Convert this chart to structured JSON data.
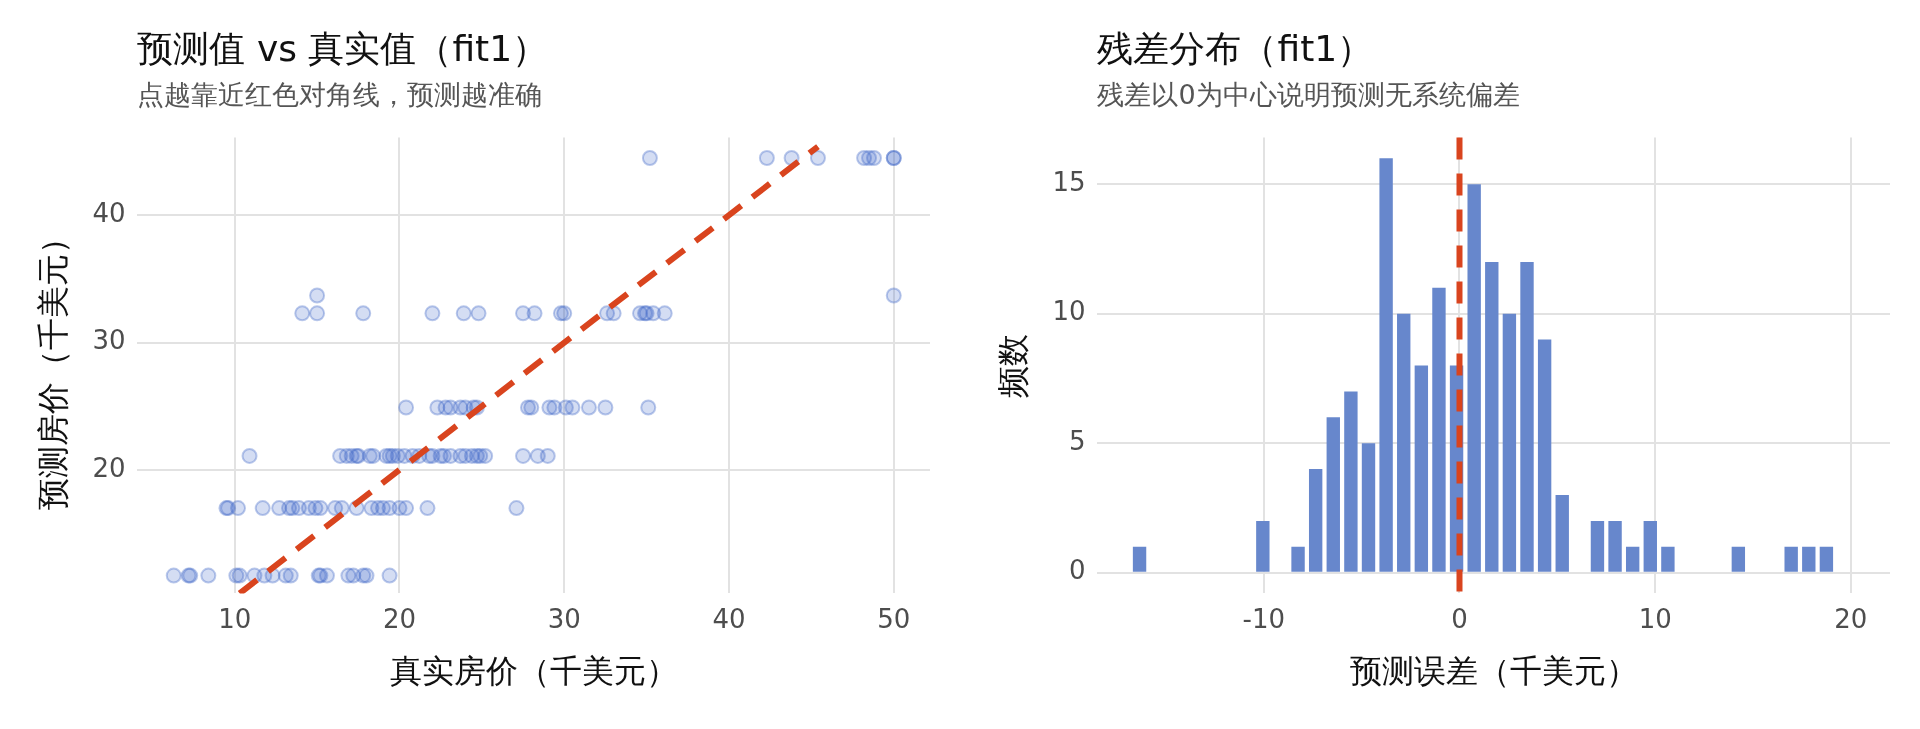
{
  "chart_data": [
    {
      "type": "scatter",
      "title": "预测值 vs 真实值（fit1）",
      "subtitle": "点越靠近红色对角线，预测越准确",
      "xlabel": "真实房价（千美元）",
      "ylabel": "预测房价（千美元）",
      "xlim": [
        4.1,
        52.2
      ],
      "ylim": [
        10.3,
        46.1
      ],
      "xticks": [
        10,
        20,
        30,
        40,
        50
      ],
      "yticks": [
        20,
        30,
        40
      ],
      "grid": true,
      "series": [
        {
          "color": "#3d63c7",
          "marker": "circle",
          "x": [
            35.2,
            42.3,
            43.8,
            45.4,
            48.2,
            48.5,
            48.8,
            50,
            50,
            15.0,
            50.0,
            14.1,
            15.0,
            17.8,
            22.0,
            23.9,
            24.8,
            27.5,
            28.2,
            29.8,
            30.0,
            32.6,
            33.0,
            34.6,
            34.9,
            35.0,
            35.4,
            36.1,
            20.4,
            22.3,
            22.8,
            23.1,
            23.7,
            24.0,
            24.5,
            24.7,
            27.8,
            28.0,
            29.1,
            29.4,
            30.1,
            30.5,
            31.5,
            32.5,
            35.1,
            10.9,
            16.4,
            16.8,
            17.1,
            17.4,
            17.5,
            18.2,
            18.4,
            19.2,
            19.4,
            19.6,
            19.9,
            20.3,
            20.8,
            21.2,
            21.8,
            22.0,
            22.5,
            22.7,
            23.1,
            23.7,
            24.0,
            24.4,
            24.7,
            24.9,
            25.2,
            27.5,
            28.4,
            29.0,
            9.5,
            9.6,
            10.2,
            11.7,
            12.7,
            13.3,
            13.5,
            13.9,
            14.5,
            14.9,
            15.2,
            16.1,
            16.5,
            17.4,
            18.3,
            18.7,
            19.0,
            19.4,
            20.0,
            20.4,
            21.7,
            27.1,
            6.3,
            7.2,
            7.3,
            8.4,
            10.1,
            10.3,
            11.2,
            11.8,
            12.3,
            13.1,
            13.4,
            15.1,
            15.2,
            15.6,
            16.9,
            17.2,
            17.8,
            18.0,
            19.4
          ],
          "values": [
            44.5,
            44.5,
            44.5,
            44.5,
            44.5,
            44.5,
            44.5,
            44.5,
            44.5,
            33.7,
            33.7,
            32.3,
            32.3,
            32.3,
            32.3,
            32.3,
            32.3,
            32.3,
            32.3,
            32.3,
            32.3,
            32.3,
            32.3,
            32.3,
            32.3,
            32.3,
            32.3,
            32.3,
            24.9,
            24.9,
            24.9,
            24.9,
            24.9,
            24.9,
            24.9,
            24.9,
            24.9,
            24.9,
            24.9,
            24.9,
            24.9,
            24.9,
            24.9,
            24.9,
            24.9,
            21.1,
            21.1,
            21.1,
            21.1,
            21.1,
            21.1,
            21.1,
            21.1,
            21.1,
            21.1,
            21.1,
            21.1,
            21.1,
            21.1,
            21.1,
            21.1,
            21.1,
            21.1,
            21.1,
            21.1,
            21.1,
            21.1,
            21.1,
            21.1,
            21.1,
            21.1,
            21.1,
            21.1,
            21.1,
            17.0,
            17.0,
            17.0,
            17.0,
            17.0,
            17.0,
            17.0,
            17.0,
            17.0,
            17.0,
            17.0,
            17.0,
            17.0,
            17.0,
            17.0,
            17.0,
            17.0,
            17.0,
            17.0,
            17.0,
            17.0,
            17.0,
            11.7,
            11.7,
            11.7,
            11.7,
            11.7,
            11.7,
            11.7,
            11.7,
            11.7,
            11.7,
            11.7,
            11.7,
            11.7,
            11.7,
            11.7,
            11.7,
            11.7,
            11.7,
            11.7
          ]
        },
        {
          "type": "line",
          "color": "#d9441e",
          "marker": "none",
          "line_style": "dashed",
          "x": [
            10.3,
            45.4
          ],
          "values": [
            10.3,
            45.4
          ]
        }
      ]
    },
    {
      "type": "histogram",
      "title": "残差分布（fit1）",
      "subtitle": "残差以0为中心说明预测无系统偏差",
      "xlabel": "预测误差（千美元）",
      "ylabel": "频数",
      "xlim": [
        -18.5,
        22
      ],
      "ylim": [
        -0.8,
        16.8
      ],
      "xticks": [
        -10,
        0,
        10,
        20
      ],
      "yticks": [
        0,
        5,
        10,
        15
      ],
      "grid": true,
      "color": "#6787cc",
      "bins": [
        -16.8,
        -15.9,
        -15,
        -14.1,
        -13.2,
        -12.3,
        -11.4,
        -10.5,
        -9.6,
        -8.7,
        -7.8,
        -6.9,
        -6,
        -5.1,
        -4.2,
        -3.3,
        -2.4,
        -1.5,
        -0.6,
        0.3,
        1.2,
        2.1,
        3,
        3.9,
        4.8,
        5.7,
        6.6,
        7.5,
        8.4,
        9.3,
        10.2,
        11.1,
        12,
        12.9,
        13.8,
        14.7,
        15.6,
        16.5,
        17.4,
        18.3,
        19.2
      ],
      "values": [
        1,
        0,
        0,
        0,
        0,
        0,
        0,
        2,
        0,
        1,
        4,
        6,
        7,
        5,
        16,
        10,
        8,
        11,
        8,
        15,
        12,
        10,
        12,
        9,
        3,
        0,
        2,
        2,
        1,
        2,
        1,
        0,
        0,
        0,
        1,
        0,
        0,
        1,
        1,
        1
      ],
      "ref_lines": [
        {
          "axis": "x",
          "value": 0,
          "color": "#d9441e",
          "line_style": "dashed"
        }
      ]
    }
  ]
}
